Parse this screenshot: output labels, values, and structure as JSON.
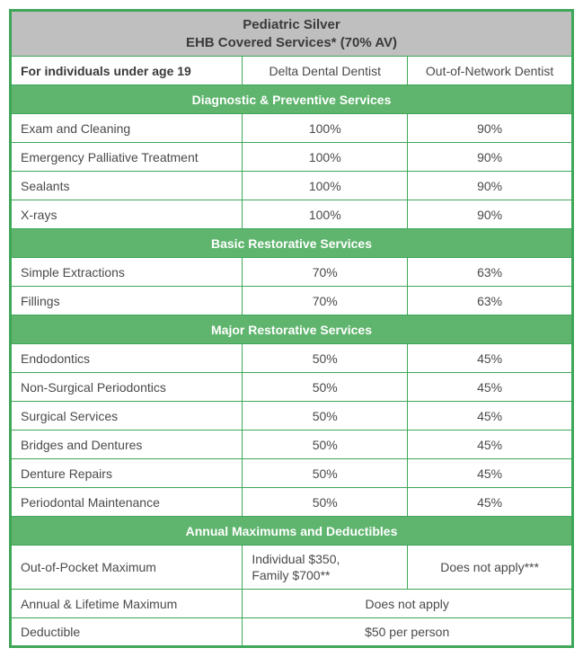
{
  "colors": {
    "border": "#3fa758",
    "section_bg": "#5fb46e",
    "title_bg": "#bfbfbf",
    "text": "#4a4a4a",
    "section_text": "#ffffff",
    "row_bg": "#ffffff"
  },
  "title": {
    "line1": "Pediatric Silver",
    "line2": "EHB Covered Services* (70% AV)"
  },
  "header": {
    "subheading": "For individuals under age 19",
    "col_in": "Delta Dental Dentist",
    "col_out": "Out-of-Network Dentist"
  },
  "sections": [
    {
      "title": "Diagnostic & Preventive Services",
      "rows": [
        {
          "name": "Exam and Cleaning",
          "in": "100%",
          "out": "90%"
        },
        {
          "name": "Emergency Palliative Treatment",
          "in": "100%",
          "out": "90%"
        },
        {
          "name": "Sealants",
          "in": "100%",
          "out": "90%"
        },
        {
          "name": "X-rays",
          "in": "100%",
          "out": "90%"
        }
      ]
    },
    {
      "title": "Basic Restorative Services",
      "rows": [
        {
          "name": "Simple Extractions",
          "in": "70%",
          "out": "63%"
        },
        {
          "name": "Fillings",
          "in": "70%",
          "out": "63%"
        }
      ]
    },
    {
      "title": "Major Restorative Services",
      "rows": [
        {
          "name": "Endodontics",
          "in": "50%",
          "out": "45%"
        },
        {
          "name": "Non-Surgical Periodontics",
          "in": "50%",
          "out": "45%"
        },
        {
          "name": "Surgical Services",
          "in": "50%",
          "out": "45%"
        },
        {
          "name": "Bridges and Dentures",
          "in": "50%",
          "out": "45%"
        },
        {
          "name": "Denture Repairs",
          "in": "50%",
          "out": "45%"
        },
        {
          "name": "Periodontal Maintenance",
          "in": "50%",
          "out": "45%"
        }
      ]
    }
  ],
  "footer_section": {
    "title": "Annual Maximums and Deductibles",
    "oop": {
      "name": "Out-of-Pocket Maximum",
      "in_line1": "Individual $350,",
      "in_line2": "Family $700**",
      "out": "Does not apply***"
    },
    "annual_lifetime": {
      "name": "Annual & Lifetime Maximum",
      "value": "Does not apply"
    },
    "deductible": {
      "name": "Deductible",
      "value": "$50 per person"
    }
  }
}
